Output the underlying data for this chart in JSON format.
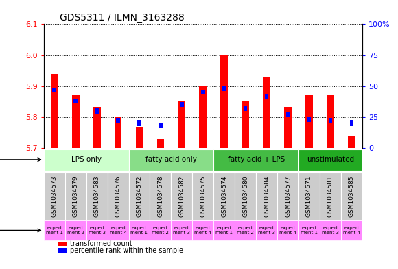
{
  "title": "GDS5311 / ILMN_3163288",
  "samples": [
    "GSM1034573",
    "GSM1034579",
    "GSM1034583",
    "GSM1034576",
    "GSM1034572",
    "GSM1034578",
    "GSM1034582",
    "GSM1034575",
    "GSM1034574",
    "GSM1034580",
    "GSM1034584",
    "GSM1034577",
    "GSM1034571",
    "GSM1034581",
    "GSM1034585"
  ],
  "red_values": [
    5.94,
    5.87,
    5.83,
    5.8,
    5.77,
    5.73,
    5.85,
    5.9,
    6.0,
    5.85,
    5.93,
    5.83,
    5.87,
    5.87,
    5.74
  ],
  "blue_values": [
    47,
    38,
    30,
    22,
    20,
    18,
    35,
    45,
    48,
    32,
    42,
    27,
    23,
    22,
    20
  ],
  "ymin": 5.7,
  "ymax": 6.1,
  "y_ticks": [
    5.7,
    5.8,
    5.9,
    6.0,
    6.1
  ],
  "y2min": 0,
  "y2max": 100,
  "y2_ticks": [
    0,
    25,
    50,
    75,
    100
  ],
  "protocols": [
    {
      "label": "LPS only",
      "start": 0,
      "end": 4,
      "color": "#ccffcc"
    },
    {
      "label": "fatty acid only",
      "start": 4,
      "end": 8,
      "color": "#88dd88"
    },
    {
      "label": "fatty acid + LPS",
      "start": 8,
      "end": 12,
      "color": "#44bb44"
    },
    {
      "label": "unstimulated",
      "start": 12,
      "end": 15,
      "color": "#22aa22"
    }
  ],
  "experiments": [
    "experi\nment 1",
    "experi\nment 2",
    "experi\nment 3",
    "experi\nment 4",
    "experi\nment 1",
    "experi\nment 2",
    "experi\nment 3",
    "experi\nment 4",
    "experi\nment 1",
    "experi\nment 2",
    "experi\nment 3",
    "experi\nment 4",
    "experi\nment 1",
    "experi\nment 3",
    "experi\nment 4"
  ],
  "exp_colors": [
    "#ff88ff",
    "#ff88ff",
    "#ff88ff",
    "#ff88ff",
    "#ff88ff",
    "#ff88ff",
    "#ff88ff",
    "#ff88ff",
    "#ff88ff",
    "#ff88ff",
    "#ff88ff",
    "#ff88ff",
    "#ff88ff",
    "#ff88ff",
    "#ff88ff"
  ]
}
